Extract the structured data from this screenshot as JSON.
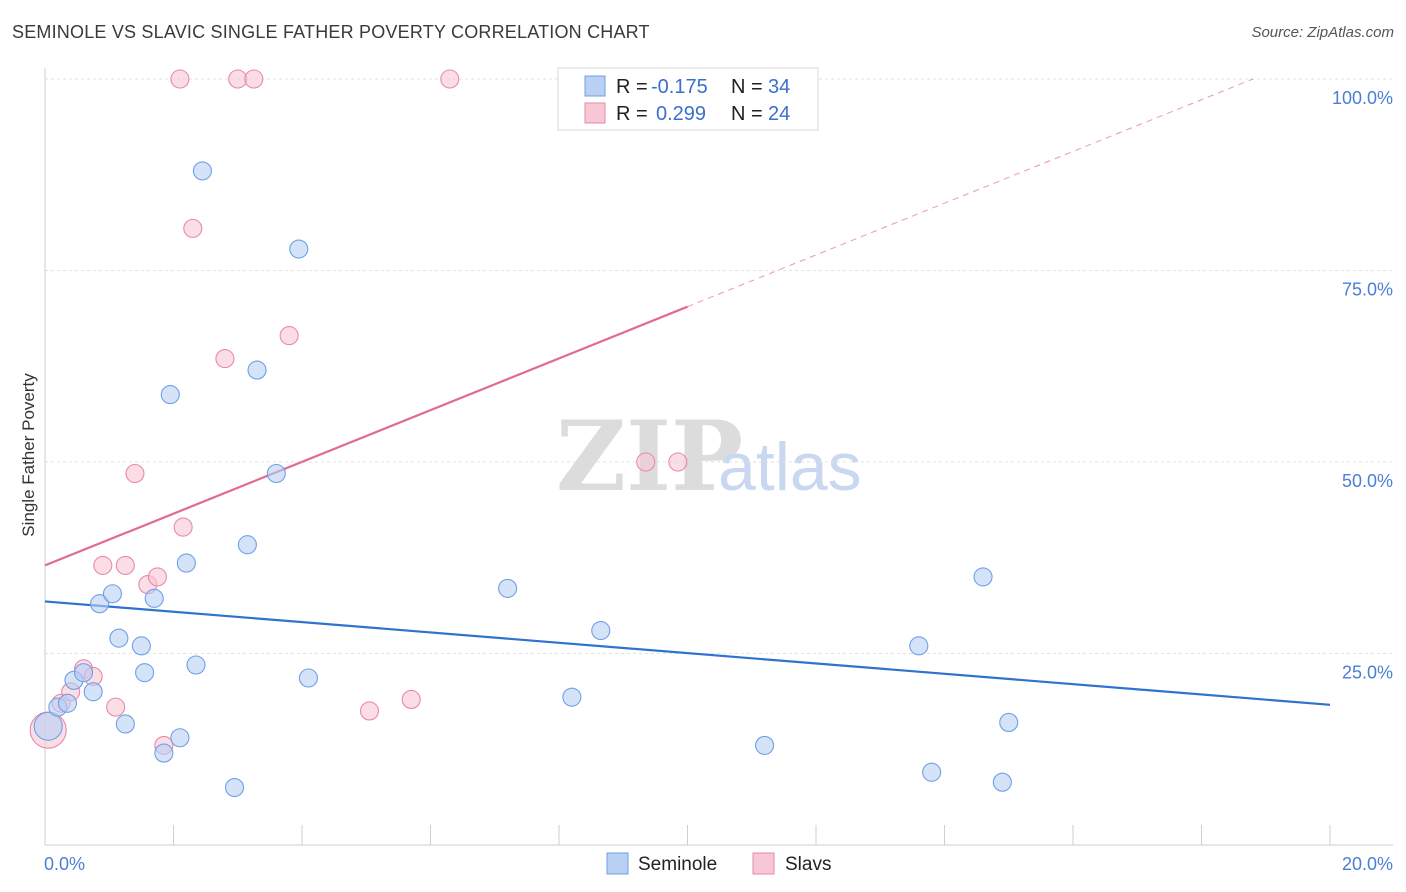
{
  "title": "SEMINOLE VS SLAVIC SINGLE FATHER POVERTY CORRELATION CHART",
  "source": "Source: ZipAtlas.com",
  "watermark": {
    "zip": "ZIP",
    "atlas": "atlas"
  },
  "chart_data": {
    "type": "scatter",
    "title": "SEMINOLE VS SLAVIC SINGLE FATHER POVERTY CORRELATION CHART",
    "xlabel": "",
    "ylabel": "Single Father Poverty",
    "xlim": [
      0,
      20
    ],
    "ylim": [
      0,
      100
    ],
    "x_tick_labels": {
      "min": "0.0%",
      "max": "20.0%"
    },
    "y_ticks": [
      25,
      50,
      75,
      100
    ],
    "y_tick_labels": [
      "25.0%",
      "50.0%",
      "75.0%",
      "100.0%"
    ],
    "grid": true,
    "legend": {
      "placement": "top-center",
      "entries": [
        {
          "name": "Seminole",
          "r_label": "R =",
          "r_value": "-0.175",
          "n_label": "N =",
          "n_value": "34"
        },
        {
          "name": "Slavs",
          "r_label": "R =",
          "r_value": "0.299",
          "n_label": "N =",
          "n_value": "24"
        }
      ]
    },
    "series": [
      {
        "name": "Seminole",
        "color": "#6fa0e6",
        "fill": "#b8d0f3",
        "line_color": "#2f72d0",
        "trend": {
          "x": [
            0,
            20
          ],
          "y": [
            31.8,
            18.3
          ],
          "dashed_from": null
        },
        "points": [
          [
            0.05,
            15.5
          ],
          [
            0.2,
            18.0
          ],
          [
            0.35,
            18.5
          ],
          [
            0.45,
            21.5
          ],
          [
            0.6,
            22.5
          ],
          [
            0.75,
            20.0
          ],
          [
            0.85,
            31.5
          ],
          [
            1.05,
            32.8
          ],
          [
            1.15,
            27.0
          ],
          [
            1.25,
            15.8
          ],
          [
            1.5,
            26.0
          ],
          [
            1.55,
            22.5
          ],
          [
            1.7,
            32.2
          ],
          [
            1.95,
            58.8
          ],
          [
            2.1,
            14.0
          ],
          [
            1.85,
            12.0
          ],
          [
            2.2,
            36.8
          ],
          [
            2.35,
            23.5
          ],
          [
            2.45,
            88.0
          ],
          [
            2.95,
            7.5
          ],
          [
            3.15,
            39.2
          ],
          [
            3.3,
            62.0
          ],
          [
            3.6,
            48.5
          ],
          [
            3.95,
            77.8
          ],
          [
            4.1,
            21.8
          ],
          [
            7.2,
            33.5
          ],
          [
            8.2,
            19.3
          ],
          [
            8.65,
            28.0
          ],
          [
            11.2,
            13.0
          ],
          [
            13.6,
            26.0
          ],
          [
            13.8,
            9.5
          ],
          [
            14.6,
            35.0
          ],
          [
            14.9,
            8.2
          ],
          [
            15.0,
            16.0
          ]
        ],
        "sizes": [
          14,
          9,
          9,
          9,
          9,
          9,
          9,
          9,
          9,
          9,
          9,
          9,
          9,
          9,
          9,
          9,
          9,
          9,
          9,
          9,
          9,
          9,
          9,
          9,
          9,
          9,
          9,
          9,
          9,
          9,
          9,
          9,
          9,
          9
        ]
      },
      {
        "name": "Slavs",
        "color": "#e88aa8",
        "fill": "#f8c7d6",
        "line_color": "#e06a92",
        "trend": {
          "x": [
            0,
            18.8
          ],
          "y": [
            36.5,
            100
          ],
          "solid_until_x": 10.0
        },
        "points": [
          [
            0.05,
            15.0
          ],
          [
            0.25,
            18.5
          ],
          [
            0.4,
            20.0
          ],
          [
            0.6,
            23.0
          ],
          [
            0.75,
            22.0
          ],
          [
            0.9,
            36.5
          ],
          [
            1.1,
            18.0
          ],
          [
            1.25,
            36.5
          ],
          [
            1.4,
            48.5
          ],
          [
            1.6,
            34.0
          ],
          [
            1.75,
            35.0
          ],
          [
            1.85,
            13.0
          ],
          [
            2.15,
            41.5
          ],
          [
            2.1,
            100.0
          ],
          [
            2.3,
            80.5
          ],
          [
            2.8,
            63.5
          ],
          [
            3.0,
            100.0
          ],
          [
            3.25,
            100.0
          ],
          [
            3.8,
            66.5
          ],
          [
            5.05,
            17.5
          ],
          [
            5.7,
            19.0
          ],
          [
            6.3,
            100.0
          ],
          [
            9.35,
            50.0
          ],
          [
            9.85,
            50.0
          ]
        ],
        "sizes": [
          18,
          9,
          9,
          9,
          9,
          9,
          9,
          9,
          9,
          9,
          9,
          9,
          9,
          9,
          9,
          9,
          9,
          9,
          9,
          9,
          9,
          9,
          9,
          9
        ]
      }
    ]
  }
}
